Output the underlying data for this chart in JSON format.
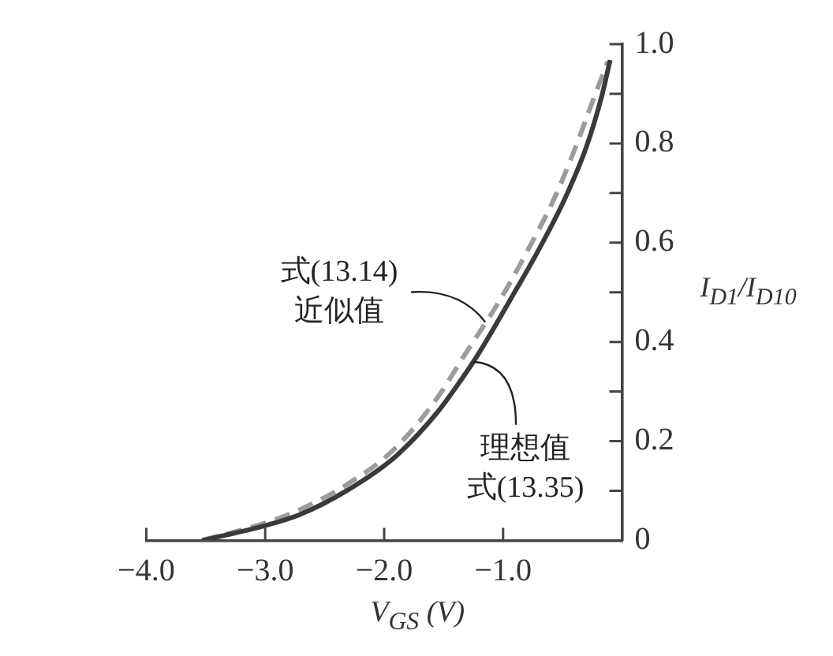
{
  "chart_data": {
    "type": "line",
    "xlabel": "V$_{GS}$ (V)",
    "ylabel": "I$_{D1}$/I$_{D10}$",
    "xlim": [
      -4,
      0
    ],
    "xticks": [
      {
        "value": -4,
        "label": "−4.0"
      },
      {
        "value": -3,
        "label": "−3.0"
      },
      {
        "value": -2,
        "label": "−2.0"
      },
      {
        "value": -1,
        "label": "−1.0"
      }
    ],
    "ylim": [
      0,
      1
    ],
    "yticks": [
      0,
      {
        "value": 0.1,
        "label": null
      },
      0.2,
      {
        "value": 0.3,
        "label": null
      },
      0.4,
      {
        "value": 0.5,
        "label": null
      },
      0.6,
      {
        "value": 0.7,
        "label": null
      },
      0.8,
      {
        "value": 0.9,
        "label": null
      },
      {
        "value": 1,
        "label": "1.0"
      }
    ],
    "series": [
      {
        "color": "#3a3a3a",
        "line_style": "solid",
        "x": [
          -3.53,
          -3.0,
          -2.71,
          -2.31,
          -1.91,
          -1.56,
          -1.34,
          -1.21,
          -0.94,
          -0.7,
          -0.48,
          -0.3,
          -0.17,
          -0.1
        ],
        "values": [
          0,
          0.03,
          0.052,
          0.101,
          0.168,
          0.256,
          0.328,
          0.375,
          0.485,
          0.586,
          0.689,
          0.793,
          0.896,
          0.968
        ]
      },
      {
        "color": "#9c9c9c",
        "line_style": "dashed",
        "x": [
          -3.53,
          -3.0,
          -2.71,
          -2.31,
          -1.91,
          -1.56,
          -1.32,
          -1.03,
          -0.79,
          -0.57,
          -0.39,
          -0.23,
          -0.12
        ],
        "values": [
          0,
          0.035,
          0.062,
          0.113,
          0.185,
          0.285,
          0.375,
          0.483,
          0.586,
          0.689,
          0.793,
          0.896,
          0.965
        ]
      }
    ],
    "annotations": [
      {
        "text": "式(13.14)近似值",
        "x": -1.15,
        "y": 0.44
      },
      {
        "text": "理想值式(13.35)",
        "x": -1.25,
        "y": 0.36
      }
    ]
  }
}
